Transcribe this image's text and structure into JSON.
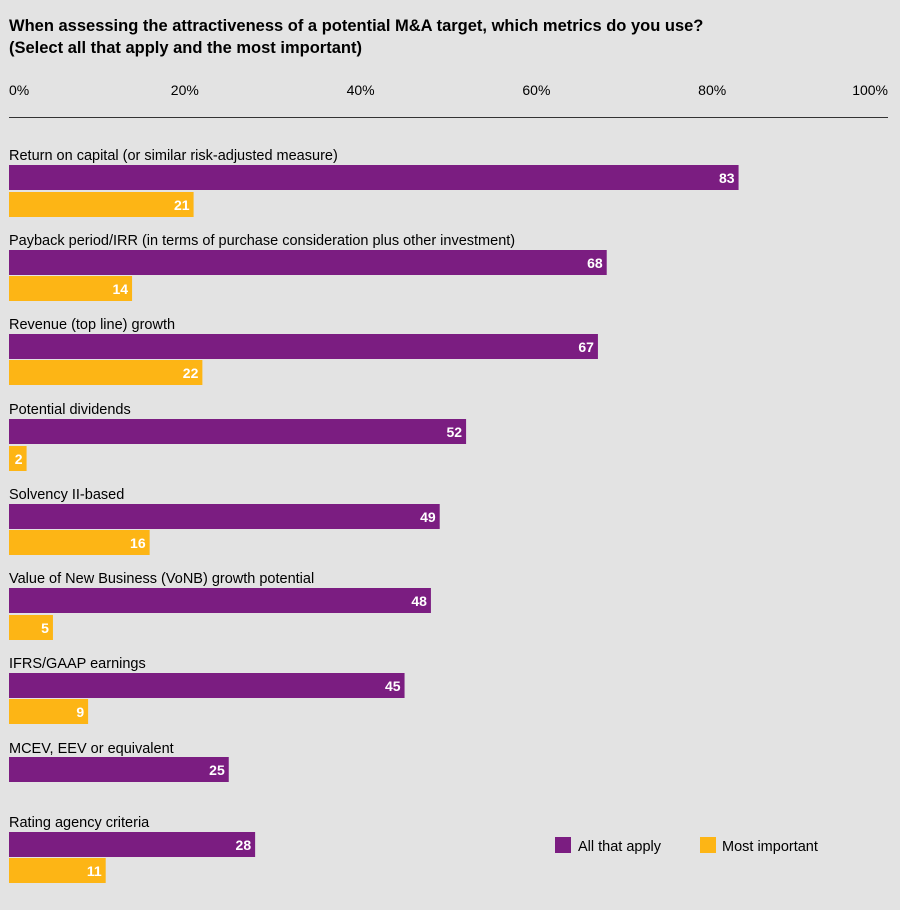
{
  "chart_data": {
    "type": "bar",
    "orientation": "horizontal",
    "title": "When assessing the attractiveness of a potential M&A target, which metrics do you use?",
    "subtitle": "(Select all that apply and the most important)",
    "xlim": [
      0,
      100
    ],
    "x_ticks": [
      "0%",
      "20%",
      "40%",
      "60%",
      "80%",
      "100%"
    ],
    "grid": false,
    "legend_position": "bottom-right",
    "categories": [
      "Return on capital (or similar risk-adjusted measure)",
      "Payback period/IRR (in terms of purchase consideration plus other investment)",
      "Revenue (top line) growth",
      "Potential dividends",
      "Solvency II-based",
      "Value of New Business (VoNB) growth potential",
      "IFRS/GAAP earnings",
      "MCEV, EEV or equivalent",
      "Rating agency criteria"
    ],
    "series": [
      {
        "name": "All that apply",
        "color": "#7b1d81",
        "values": [
          83,
          68,
          67,
          52,
          49,
          48,
          45,
          25,
          28
        ]
      },
      {
        "name": "Most important",
        "color": "#fdb515",
        "values": [
          21,
          14,
          22,
          2,
          16,
          5,
          9,
          null,
          11
        ]
      }
    ]
  }
}
